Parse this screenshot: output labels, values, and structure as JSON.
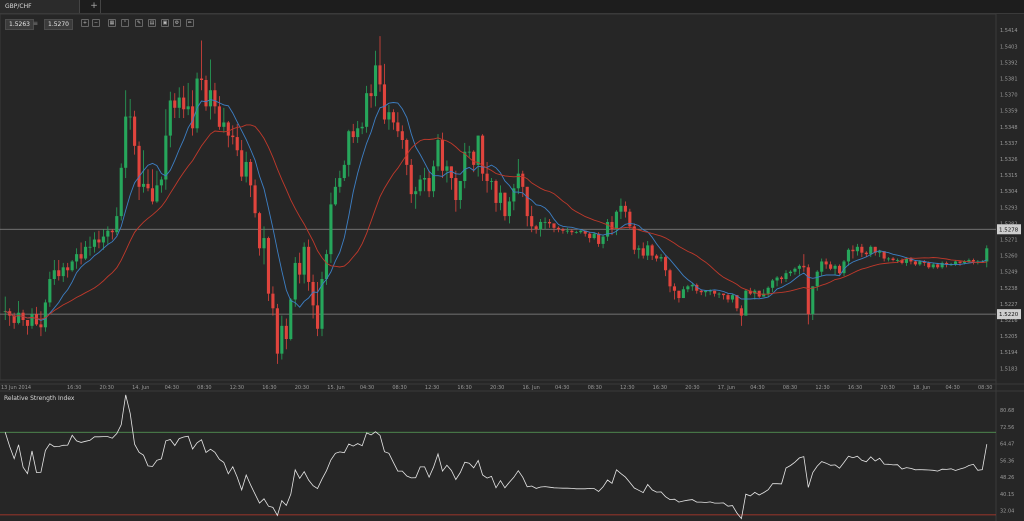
{
  "tab": {
    "label": "GBP/CHF",
    "add_label": "+"
  },
  "quote": {
    "bid": "1.5263",
    "sep": "≡",
    "ask": "1.5270"
  },
  "toolbar": [
    "zoom-in-icon",
    "zoom-out-icon",
    "indicators-icon",
    "chart-type-icon",
    "draw-tools-icon",
    "template-icon",
    "screenshot-icon",
    "settings-icon",
    "edit-icon"
  ],
  "colors": {
    "bull": "#26a65b",
    "bear": "#e0443d",
    "ma_fast": "#3d7fc4",
    "ma_slow": "#c0392b",
    "rsi": "#e6e6e6",
    "ob": "#5aa35a",
    "os": "#c0392b"
  },
  "chart_data": [
    {
      "type": "candlestick",
      "title": "GBP/CHF",
      "ylim": [
        1.5175,
        1.5421
      ],
      "y_ticks": [
        "1.5414",
        "1.5403",
        "1.5392",
        "1.5381",
        "1.5370",
        "1.5359",
        "1.5348",
        "1.5337",
        "1.5326",
        "1.5315",
        "1.5304",
        "1.5293",
        "1.5282",
        "1.5271",
        "1.5260",
        "1.5249",
        "1.5238",
        "1.5227",
        "1.5216",
        "1.5205",
        "1.5194",
        "1.5183"
      ],
      "x_ticks": [
        "13 Jun 2014",
        "16:30",
        "20:30",
        "14. Jun",
        "04:30",
        "08:30",
        "12:30",
        "16:30",
        "20:30",
        "15. Jun",
        "04:30",
        "08:30",
        "12:30",
        "16:30",
        "20:30",
        "16. Jun",
        "04:30",
        "08:30",
        "12:30",
        "16:30",
        "20:30",
        "17. Jun",
        "04:30",
        "08:30",
        "12:30",
        "16:30",
        "20:30",
        "18. Jun",
        "04:30",
        "08:30"
      ],
      "horizontal_lines": [
        "1.5278",
        "1.5220"
      ],
      "series": [
        {
          "kind": "candles",
          "close": [
            1.5222,
            1.5219,
            1.5214,
            1.5221,
            1.5216,
            1.5212,
            1.522,
            1.5213,
            1.5211,
            1.5228,
            1.5244,
            1.525,
            1.5246,
            1.5252,
            1.525,
            1.5256,
            1.5261,
            1.5258,
            1.5266,
            1.5266,
            1.5271,
            1.5269,
            1.5273,
            1.5277,
            1.5276,
            1.5287,
            1.532,
            1.5355,
            1.5355,
            1.5335,
            1.5307,
            1.5309,
            1.5306,
            1.5297,
            1.5308,
            1.5312,
            1.5342,
            1.5366,
            1.5361,
            1.5368,
            1.536,
            1.5362,
            1.5347,
            1.5381,
            1.538,
            1.5362,
            1.5373,
            1.5362,
            1.5348,
            1.5351,
            1.5342,
            1.5341,
            1.5332,
            1.5314,
            1.5324,
            1.5308,
            1.5289,
            1.5265,
            1.5272,
            1.5234,
            1.5224,
            1.5193,
            1.5212,
            1.5203,
            1.523,
            1.5255,
            1.5247,
            1.5266,
            1.5242,
            1.5226,
            1.521,
            1.5244,
            1.5261,
            1.5295,
            1.5307,
            1.5313,
            1.5322,
            1.5345,
            1.5341,
            1.5347,
            1.5348,
            1.5371,
            1.5369,
            1.539,
            1.5377,
            1.5353,
            1.5358,
            1.5351,
            1.5345,
            1.5339,
            1.5322,
            1.5302,
            1.5304,
            1.5312,
            1.5313,
            1.5304,
            1.5321,
            1.5339,
            1.5318,
            1.5321,
            1.5313,
            1.5298,
            1.5311,
            1.5331,
            1.5331,
            1.5322,
            1.5342,
            1.5316,
            1.5311,
            1.5311,
            1.5296,
            1.5303,
            1.5287,
            1.5297,
            1.5306,
            1.5316,
            1.5307,
            1.5287,
            1.528,
            1.5278,
            1.5283,
            1.5283,
            1.5282,
            1.5279,
            1.5278,
            1.5277,
            1.5277,
            1.5276,
            1.5276,
            1.5277,
            1.5275,
            1.5272,
            1.5275,
            1.5268,
            1.5273,
            1.5283,
            1.5278,
            1.529,
            1.5294,
            1.529,
            1.528,
            1.5264,
            1.5265,
            1.526,
            1.5267,
            1.526,
            1.5258,
            1.5259,
            1.525,
            1.5239,
            1.5236,
            1.5231,
            1.5237,
            1.5239,
            1.524,
            1.5236,
            1.5235,
            1.5236,
            1.5236,
            1.5234,
            1.5234,
            1.5233,
            1.523,
            1.5233,
            1.5224,
            1.5219,
            1.5236,
            1.5234,
            1.5236,
            1.5232,
            1.5234,
            1.5238,
            1.5243,
            1.5245,
            1.5244,
            1.5248,
            1.5249,
            1.5251,
            1.5253,
            1.5252,
            1.522,
            1.5239,
            1.5249,
            1.5256,
            1.5254,
            1.5251,
            1.5253,
            1.5248,
            1.5256,
            1.5264,
            1.5263,
            1.5266,
            1.5262,
            1.5261,
            1.5266,
            1.5262,
            1.5263,
            1.5258,
            1.5258,
            1.5257,
            1.5257,
            1.5255,
            1.5258,
            1.5256,
            1.5254,
            1.5256,
            1.5255,
            1.5252,
            1.5254,
            1.5252,
            1.5255,
            1.5254,
            1.5254,
            1.5256,
            1.5255,
            1.5256,
            1.5257,
            1.5256,
            1.5256,
            1.5256,
            1.5265
          ],
          "high": [
            1.5232,
            1.5224,
            1.5221,
            1.5229,
            1.5223,
            1.5216,
            1.5224,
            1.5225,
            1.5222,
            1.523,
            1.5249,
            1.5257,
            1.5257,
            1.5255,
            1.5255,
            1.5257,
            1.5265,
            1.5269,
            1.527,
            1.5273,
            1.5276,
            1.5277,
            1.5278,
            1.528,
            1.5278,
            1.5293,
            1.5323,
            1.5373,
            1.5367,
            1.5359,
            1.5338,
            1.5332,
            1.5319,
            1.5319,
            1.5318,
            1.5314,
            1.536,
            1.5372,
            1.5371,
            1.5375,
            1.5376,
            1.5378,
            1.5373,
            1.5385,
            1.5407,
            1.5383,
            1.5394,
            1.5378,
            1.5369,
            1.5361,
            1.5352,
            1.5349,
            1.535,
            1.5339,
            1.5331,
            1.5326,
            1.5312,
            1.529,
            1.528,
            1.5273,
            1.5239,
            1.5227,
            1.5219,
            1.5217,
            1.5231,
            1.5259,
            1.5262,
            1.5269,
            1.5271,
            1.5247,
            1.5242,
            1.5249,
            1.5264,
            1.5303,
            1.5313,
            1.5318,
            1.5325,
            1.5346,
            1.535,
            1.5352,
            1.5351,
            1.5376,
            1.5377,
            1.54,
            1.541,
            1.5391,
            1.5363,
            1.536,
            1.5358,
            1.5349,
            1.534,
            1.5326,
            1.5307,
            1.5315,
            1.532,
            1.5318,
            1.5325,
            1.5343,
            1.5344,
            1.5325,
            1.5321,
            1.5318,
            1.5311,
            1.5337,
            1.5335,
            1.5332,
            1.5342,
            1.5343,
            1.5324,
            1.5313,
            1.5312,
            1.5308,
            1.5303,
            1.53,
            1.5309,
            1.5326,
            1.5318,
            1.5307,
            1.5294,
            1.5281,
            1.5285,
            1.5286,
            1.5285,
            1.5282,
            1.528,
            1.5279,
            1.5279,
            1.5278,
            1.5277,
            1.5278,
            1.5277,
            1.5276,
            1.5276,
            1.5276,
            1.5274,
            1.5285,
            1.5287,
            1.5291,
            1.5299,
            1.5297,
            1.5292,
            1.5282,
            1.5267,
            1.5269,
            1.527,
            1.5268,
            1.5261,
            1.5261,
            1.526,
            1.5251,
            1.5241,
            1.5236,
            1.5239,
            1.524,
            1.5241,
            1.5241,
            1.5237,
            1.5236,
            1.5237,
            1.5236,
            1.5235,
            1.5234,
            1.5234,
            1.5234,
            1.5233,
            1.5226,
            1.5237,
            1.5238,
            1.5237,
            1.5236,
            1.5237,
            1.5239,
            1.5244,
            1.5246,
            1.5246,
            1.525,
            1.525,
            1.5252,
            1.5254,
            1.5261,
            1.5254,
            1.5239,
            1.525,
            1.5258,
            1.5258,
            1.5256,
            1.5254,
            1.5254,
            1.5257,
            1.5265,
            1.5267,
            1.5268,
            1.5268,
            1.5263,
            1.5267,
            1.5266,
            1.5264,
            1.5263,
            1.5259,
            1.5259,
            1.5258,
            1.5258,
            1.5259,
            1.5259,
            1.5257,
            1.5257,
            1.5257,
            1.5256,
            1.5255,
            1.5255,
            1.5256,
            1.5256,
            1.5255,
            1.5257,
            1.5256,
            1.5257,
            1.5258,
            1.5258,
            1.5257,
            1.5257,
            1.5267
          ],
          "low": [
            1.5216,
            1.5212,
            1.521,
            1.5213,
            1.5212,
            1.5206,
            1.521,
            1.5212,
            1.5205,
            1.5208,
            1.5225,
            1.524,
            1.5243,
            1.5242,
            1.5245,
            1.5249,
            1.5251,
            1.5254,
            1.5257,
            1.526,
            1.5262,
            1.5265,
            1.5264,
            1.5268,
            1.5271,
            1.5274,
            1.5284,
            1.5313,
            1.5346,
            1.5329,
            1.5298,
            1.5303,
            1.5304,
            1.5295,
            1.5296,
            1.5303,
            1.5305,
            1.5334,
            1.5354,
            1.5354,
            1.5354,
            1.5356,
            1.5342,
            1.5344,
            1.5373,
            1.5359,
            1.5353,
            1.5357,
            1.5346,
            1.5344,
            1.5334,
            1.5336,
            1.5328,
            1.5311,
            1.531,
            1.53,
            1.5286,
            1.526,
            1.5254,
            1.5229,
            1.5219,
            1.5186,
            1.5189,
            1.5196,
            1.5202,
            1.5225,
            1.5241,
            1.5241,
            1.5236,
            1.5217,
            1.5205,
            1.5205,
            1.524,
            1.5255,
            1.5294,
            1.5303,
            1.5311,
            1.5314,
            1.5337,
            1.5337,
            1.5343,
            1.5344,
            1.5361,
            1.5362,
            1.5372,
            1.535,
            1.5346,
            1.5346,
            1.5341,
            1.5333,
            1.5315,
            1.5296,
            1.5292,
            1.5301,
            1.5304,
            1.53,
            1.53,
            1.5318,
            1.5313,
            1.531,
            1.5305,
            1.529,
            1.5292,
            1.5306,
            1.5327,
            1.5317,
            1.5314,
            1.5311,
            1.5303,
            1.5305,
            1.529,
            1.5291,
            1.5284,
            1.5282,
            1.5291,
            1.5302,
            1.53,
            1.528,
            1.5276,
            1.5275,
            1.5273,
            1.5278,
            1.5279,
            1.5276,
            1.5276,
            1.5275,
            1.5275,
            1.5274,
            1.5275,
            1.5275,
            1.5273,
            1.5269,
            1.5271,
            1.5266,
            1.5265,
            1.527,
            1.5274,
            1.5274,
            1.5285,
            1.5286,
            1.5278,
            1.5261,
            1.5258,
            1.5258,
            1.5257,
            1.5257,
            1.5256,
            1.5256,
            1.5246,
            1.5235,
            1.523,
            1.5228,
            1.5231,
            1.5235,
            1.5236,
            1.5234,
            1.5233,
            1.5232,
            1.5233,
            1.5232,
            1.5231,
            1.523,
            1.5228,
            1.5228,
            1.5222,
            1.5212,
            1.5219,
            1.5233,
            1.523,
            1.5231,
            1.5232,
            1.5232,
            1.5235,
            1.5239,
            1.5241,
            1.5242,
            1.5246,
            1.5247,
            1.5247,
            1.5249,
            1.5213,
            1.5216,
            1.5236,
            1.5246,
            1.5251,
            1.525,
            1.5247,
            1.5247,
            1.5246,
            1.5253,
            1.5258,
            1.526,
            1.5259,
            1.5259,
            1.5259,
            1.526,
            1.5259,
            1.5256,
            1.5256,
            1.5256,
            1.5255,
            1.5254,
            1.5253,
            1.5254,
            1.5253,
            1.5253,
            1.5253,
            1.5251,
            1.5251,
            1.5251,
            1.5251,
            1.5252,
            1.5253,
            1.5253,
            1.5253,
            1.5254,
            1.5255,
            1.5254,
            1.5254,
            1.5255,
            1.5252
          ]
        },
        {
          "kind": "ma",
          "name": "",
          "color": "#3d7fc4",
          "period": 8
        },
        {
          "kind": "ma",
          "name": "",
          "color": "#c0392b",
          "period": 21
        }
      ]
    },
    {
      "type": "line",
      "title": "Relative Strength Index",
      "ylim": [
        28,
        89
      ],
      "y_ticks": [
        "80.68",
        "72.56",
        "64.47",
        "56.36",
        "48.26",
        "40.15",
        "32.04"
      ],
      "levels": [
        70,
        30
      ],
      "series": [
        {
          "name": "",
          "values": [
            70.0,
            63.1,
            57.2,
            63.9,
            53.1,
            50.0,
            60.9,
            50.5,
            50.6,
            61.2,
            64.4,
            63.0,
            63.1,
            63.7,
            63.8,
            68.5,
            65.8,
            65.1,
            65.6,
            66.1,
            67.8,
            67.8,
            67.9,
            67.9,
            67.1,
            69.4,
            73.6,
            88.1,
            79.1,
            64.2,
            60.3,
            58.9,
            53.7,
            53.4,
            56.4,
            57.1,
            65.8,
            66.5,
            63.6,
            66.9,
            67.7,
            68.1,
            61.9,
            64.9,
            66.4,
            60.2,
            61.8,
            60.3,
            56.9,
            55.4,
            49.9,
            53.3,
            48.3,
            42.1,
            49.3,
            44.5,
            40.0,
            35.7,
            37.8,
            34.2,
            33.6,
            29.7,
            36.9,
            34.6,
            40.0,
            51.8,
            47.7,
            50.9,
            46.9,
            44.1,
            42.7,
            47.3,
            51.4,
            56.6,
            59.8,
            60.5,
            60.1,
            64.3,
            63.3,
            64.5,
            63.5,
            69.7,
            68.7,
            70.2,
            68.5,
            60.6,
            59.8,
            55.4,
            51.2,
            51.2,
            48.8,
            47.9,
            48.0,
            53.2,
            53.2,
            48.3,
            53.1,
            59.5,
            51.2,
            54.0,
            51.5,
            47.1,
            50.5,
            55.5,
            55.0,
            52.8,
            56.3,
            49.3,
            47.8,
            48.6,
            43.1,
            46.6,
            43.1,
            45.8,
            48.2,
            51.4,
            48.2,
            43.6,
            44.0,
            42.8,
            43.5,
            43.7,
            43.4,
            43.1,
            43.0,
            42.9,
            42.9,
            42.8,
            42.6,
            42.6,
            42.6,
            42.8,
            42.7,
            41.3,
            43.6,
            46.9,
            45.3,
            51.8,
            50.0,
            48.3,
            45.7,
            43.0,
            41.9,
            40.8,
            44.7,
            42.1,
            41.0,
            41.1,
            38.8,
            37.4,
            37.6,
            36.2,
            36.7,
            37.1,
            37.4,
            36.2,
            36.2,
            36.0,
            36.3,
            35.7,
            35.7,
            35.8,
            34.2,
            34.5,
            30.9,
            28.2,
            40.0,
            39.2,
            40.9,
            39.6,
            40.8,
            42.2,
            45.1,
            45.1,
            45.0,
            52.7,
            53.9,
            55.5,
            57.6,
            58.2,
            43.3,
            50.5,
            53.6,
            55.8,
            55.0,
            54.0,
            54.2,
            52.6,
            55.4,
            58.4,
            57.7,
            58.4,
            56.4,
            55.7,
            58.1,
            56.1,
            57.4,
            54.6,
            54.5,
            54.2,
            54.3,
            52.2,
            52.9,
            52.5,
            51.8,
            51.9,
            51.8,
            51.7,
            51.6,
            51.2,
            52.1,
            52.0,
            52.3,
            51.5,
            52.2,
            52.8,
            53.9,
            54.5,
            51.6,
            51.9,
            64.2
          ]
        }
      ]
    }
  ]
}
